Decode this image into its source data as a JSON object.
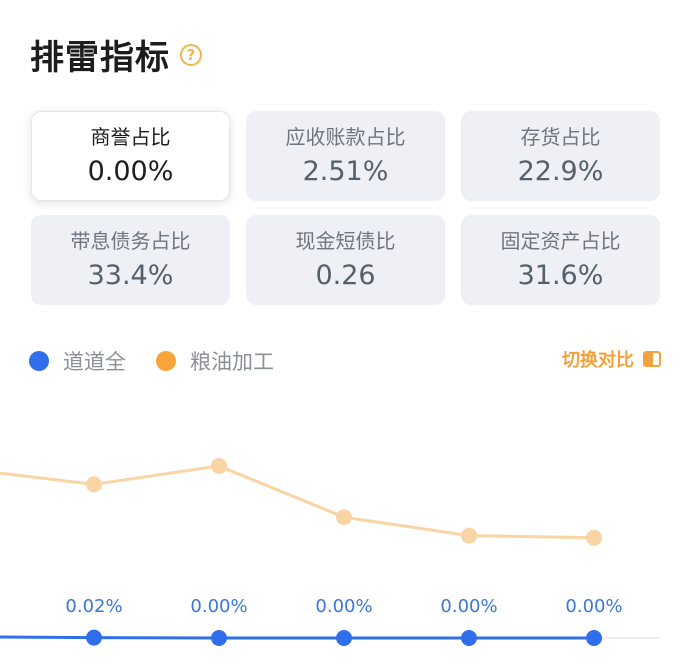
{
  "header": {
    "title": "排雷指标",
    "help_icon": "?"
  },
  "metrics": [
    {
      "label": "商誉占比",
      "value": "0.00%",
      "active": true
    },
    {
      "label": "应收账款占比",
      "value": "2.51%",
      "active": false
    },
    {
      "label": "存货占比",
      "value": "22.9%",
      "active": false
    },
    {
      "label": "带息债务占比",
      "value": "33.4%",
      "active": false
    },
    {
      "label": "现金短债比",
      "value": "0.26",
      "active": false
    },
    {
      "label": "固定资产占比",
      "value": "31.6%",
      "active": false
    }
  ],
  "legend": {
    "items": [
      {
        "name": "道道全",
        "color": "#2f6fec"
      },
      {
        "name": "粮油加工",
        "color": "#f7a43b"
      }
    ],
    "switch_label": "切换对比",
    "switch_icon": "switch-icon"
  },
  "chart_data": {
    "type": "line",
    "series": [
      {
        "name": "道道全",
        "values": [
          0.02,
          0.0,
          0.0,
          0.0,
          0.0
        ],
        "labels": [
          "0.02%",
          "0.00%",
          "0.00%",
          "0.00%",
          "0.00%"
        ],
        "color": "#2f6fec"
      },
      {
        "name": "粮油加工",
        "values": [
          5.2,
          6.1,
          3.6,
          2.7,
          2.6
        ],
        "color": "#f9d4a4"
      }
    ]
  }
}
